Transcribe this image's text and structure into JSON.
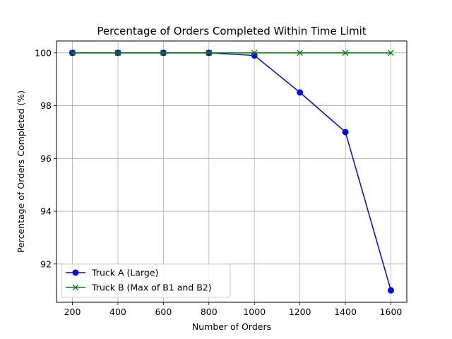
{
  "chart_data": {
    "type": "line",
    "title": "Percentage of Orders Completed Within Time Limit",
    "xlabel": "Number of Orders",
    "ylabel": "Percentage of Orders Completed (%)",
    "x": [
      200,
      400,
      600,
      800,
      1000,
      1200,
      1400,
      1600
    ],
    "xticks": [
      200,
      400,
      600,
      800,
      1000,
      1200,
      1400,
      1600
    ],
    "yticks": [
      92,
      94,
      96,
      98,
      100
    ],
    "xlim": [
      130,
      1670
    ],
    "ylim": [
      90.55,
      100.45
    ],
    "grid": true,
    "legend_position": "lower-left",
    "series": [
      {
        "name": "Truck A (Large)",
        "color": "#0000ff",
        "marker": "circle",
        "values": [
          100,
          100,
          100,
          100,
          99.9,
          98.5,
          97.0,
          91.0
        ]
      },
      {
        "name": "Truck B (Max of B1 and B2)",
        "color": "#008000",
        "marker": "x",
        "values": [
          100,
          100,
          100,
          100,
          100,
          100,
          100,
          100
        ]
      }
    ]
  }
}
